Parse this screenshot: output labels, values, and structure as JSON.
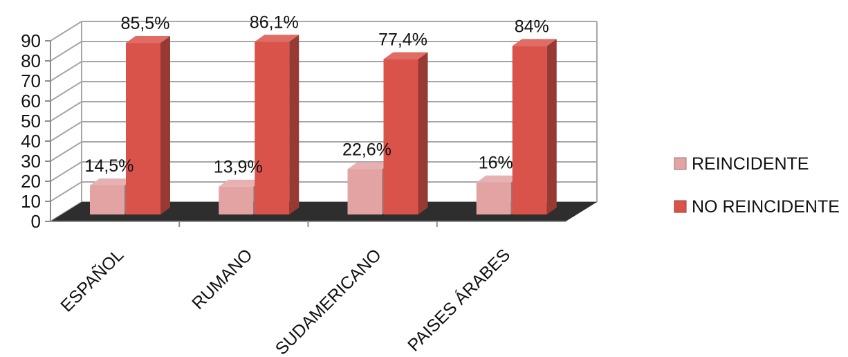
{
  "chart_data": {
    "type": "bar",
    "categories": [
      "ESPAÑOL",
      "RUMANO",
      "SUDAMERICANO",
      "PAISES ÁRABES"
    ],
    "series": [
      {
        "name": "REINCIDENTE",
        "values": [
          14.5,
          13.9,
          22.6,
          16
        ],
        "labels": [
          "14,5%",
          "13,9%",
          "22,6%",
          "16%"
        ],
        "color": "#e3a3a3"
      },
      {
        "name": "NO REINCIDENTE",
        "values": [
          85.5,
          86.1,
          77.4,
          84
        ],
        "labels": [
          "85,5%",
          "86,1%",
          "77,4%",
          "84%"
        ],
        "color": "#d9534a"
      }
    ],
    "yticks": [
      "0",
      "10",
      "20",
      "30",
      "40",
      "50",
      "60",
      "70",
      "80",
      "90"
    ],
    "ylim": [
      0,
      90
    ],
    "grid": true,
    "legend_position": "right",
    "style": "3d-column",
    "floor_color": "#2e2e2e"
  }
}
